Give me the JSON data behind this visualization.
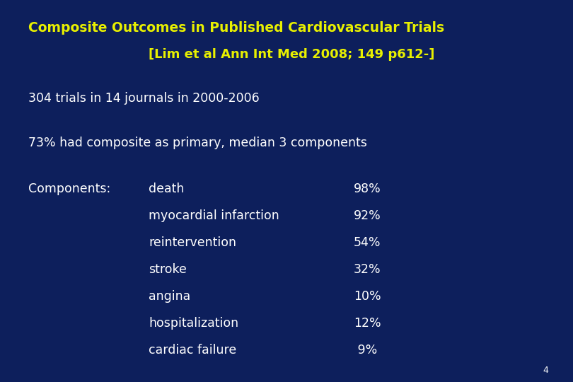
{
  "background_color": "#0d1f5c",
  "title_line1": "Composite Outcomes in Published Cardiovascular Trials",
  "title_line2": "[Lim et al Ann Int Med 2008; 149 p612-]",
  "title_color": "#e8f000",
  "body_text_color": "#ffffff",
  "line1": "304 trials in 14 journals in 2000-2006",
  "line2": "73% had composite as primary, median 3 components",
  "components_label": "Components:",
  "components": [
    "death",
    "myocardial infarction",
    "reintervention",
    "stroke",
    "angina",
    "hospitalization",
    "cardiac failure"
  ],
  "percentages": [
    "98%",
    "92%",
    "54%",
    "32%",
    "10%",
    "12%",
    " 9%"
  ],
  "page_number": "4",
  "title_fontsize": 13.5,
  "title2_fontsize": 13.0,
  "body_fontsize": 12.5,
  "page_fontsize": 9
}
